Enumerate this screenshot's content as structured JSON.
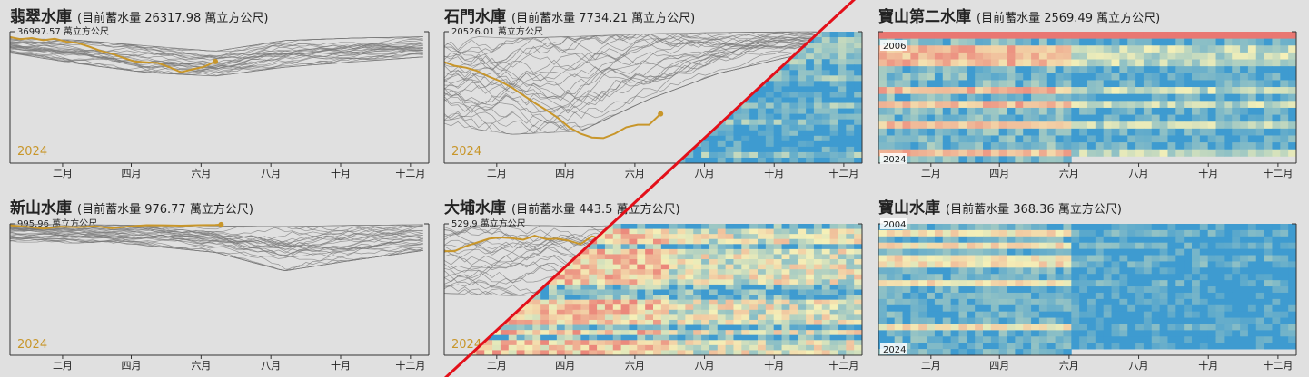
{
  "month_ticks": [
    "二月",
    "四月",
    "六月",
    "八月",
    "十月",
    "十二月"
  ],
  "colors": {
    "background": "#e0e0e0",
    "history_line": "#7a7a7a",
    "current_line": "#c8962a",
    "heat_low": "#e86a6a",
    "heat_mid": "#f5f0b8",
    "heat_high": "#3e9bd0",
    "divider": "#e3101a"
  },
  "chart_data": [
    {
      "id": "feitsui",
      "type": "line",
      "title": "翡翠水庫",
      "subtitle": "(目前蓄水量 26317.98 萬立方公尺)",
      "max_label": "36997.57 萬立方公尺",
      "ymax": 36997.57,
      "year_label": "2024",
      "x_domain": [
        1,
        366
      ],
      "current_series": {
        "name": "2024",
        "x": [
          1,
          10,
          20,
          30,
          40,
          50,
          60,
          70,
          80,
          90,
          100,
          110,
          120,
          130,
          140,
          150,
          160,
          170,
          180
        ],
        "y": [
          35500,
          34900,
          35200,
          34600,
          35000,
          34200,
          33800,
          32800,
          31600,
          30800,
          29600,
          28600,
          28400,
          28200,
          27000,
          25600,
          26400,
          27100,
          28600
        ]
      },
      "history_band": {
        "x_days": [
          1,
          60,
          120,
          180,
          240,
          300,
          366
        ],
        "y_low": [
          31000,
          28000,
          25500,
          24500,
          27000,
          28500,
          30000
        ],
        "y_high": [
          35200,
          34600,
          33000,
          31500,
          34500,
          35200,
          35600
        ],
        "count": 30
      }
    },
    {
      "id": "shimen",
      "type": "line",
      "title": "石門水庫",
      "subtitle": "(目前蓄水量 7734.21 萬立方公尺)",
      "max_label": "20526.01 萬立方公尺",
      "ymax": 20526.01,
      "year_label": "2024",
      "x_domain": [
        1,
        366
      ],
      "current_series": {
        "name": "2024",
        "x": [
          1,
          10,
          20,
          30,
          40,
          50,
          60,
          70,
          80,
          90,
          100,
          110,
          120,
          130,
          140,
          150,
          160,
          170,
          180,
          190
        ],
        "y": [
          15800,
          15200,
          14900,
          14400,
          13500,
          12800,
          11800,
          10600,
          9400,
          8300,
          7100,
          5600,
          4600,
          4000,
          3900,
          4600,
          5600,
          6000,
          6000,
          7700
        ]
      },
      "history_band": {
        "x_days": [
          1,
          60,
          120,
          180,
          240,
          300,
          366
        ],
        "y_low": [
          6000,
          4500,
          5000,
          10000,
          14000,
          16500,
          18500
        ],
        "y_high": [
          20000,
          19500,
          19800,
          20200,
          20400,
          20500,
          20500
        ],
        "count": 30
      }
    },
    {
      "id": "baoshan2",
      "type": "heatmap",
      "title": "寶山第二水庫",
      "subtitle": "(目前蓄水量 2569.49 萬立方公尺)",
      "year_start": 2006,
      "year_end": 2024,
      "start_label": "2006",
      "end_label": "2024",
      "color_scale": "fraction of capacity (low red → high blue)"
    },
    {
      "id": "hsinshan",
      "type": "line",
      "title": "新山水庫",
      "subtitle": "(目前蓄水量 976.77 萬立方公尺)",
      "max_label": "995.96 萬立方公尺",
      "ymax": 995.96,
      "year_label": "2024",
      "x_domain": [
        1,
        366
      ],
      "current_series": {
        "name": "2024",
        "x": [
          1,
          15,
          30,
          45,
          60,
          75,
          90,
          105,
          120,
          135,
          150,
          165,
          180,
          185
        ],
        "y": [
          985,
          975,
          960,
          975,
          970,
          978,
          962,
          976,
          986,
          985,
          982,
          986,
          988,
          990
        ]
      },
      "history_band": {
        "x_days": [
          1,
          60,
          120,
          180,
          240,
          300,
          366
        ],
        "y_low": [
          860,
          850,
          830,
          780,
          640,
          720,
          800
        ],
        "y_high": [
          995,
          990,
          985,
          980,
          975,
          985,
          990
        ],
        "count": 30
      }
    },
    {
      "id": "dapu",
      "type": "line",
      "title": "大埔水庫",
      "subtitle": "(目前蓄水量 443.5 萬立方公尺)",
      "max_label": "529.9 萬立方公尺",
      "ymax": 529.9,
      "year_label": "2024",
      "x_domain": [
        1,
        366
      ],
      "current_series": {
        "name": "2024",
        "x": [
          1,
          10,
          20,
          30,
          40,
          50,
          60,
          70,
          80,
          90,
          100,
          110,
          120,
          130,
          140,
          150
        ],
        "y": [
          420,
          420,
          440,
          455,
          470,
          475,
          472,
          466,
          482,
          468,
          470,
          462,
          448,
          480,
          468,
          470
        ]
      },
      "history_band": {
        "x_days": [
          1,
          60,
          120,
          180
        ],
        "y_low": [
          250,
          240,
          250,
          300
        ],
        "y_high": [
          520,
          525,
          520,
          525
        ],
        "count": 25
      }
    },
    {
      "id": "baoshan",
      "type": "heatmap",
      "title": "寶山水庫",
      "subtitle": "(目前蓄水量 368.36 萬立方公尺)",
      "year_start": 2004,
      "year_end": 2024,
      "start_label": "2004",
      "end_label": "2024",
      "color_scale": "fraction of capacity (low red → high blue)"
    }
  ]
}
